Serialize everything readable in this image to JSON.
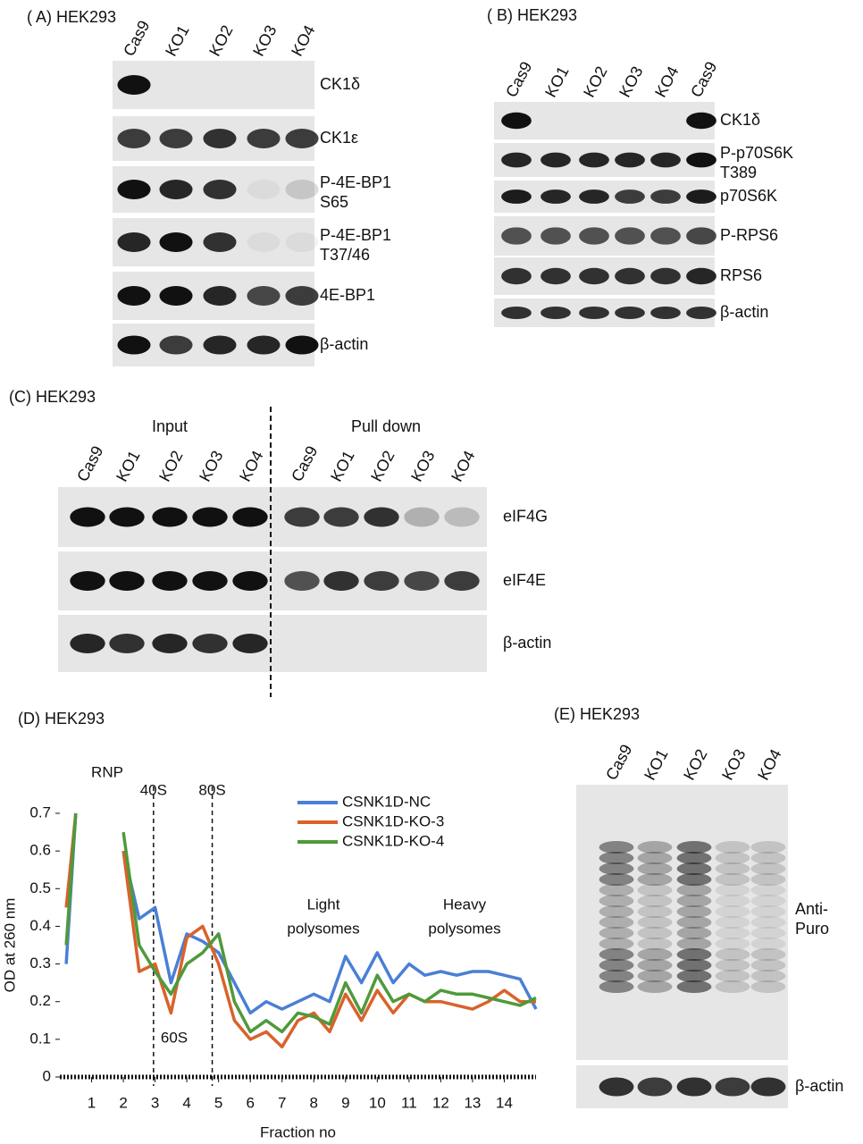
{
  "panels": {
    "A": {
      "label": "( A) HEK293",
      "lanes": [
        "Cas9",
        "KO1",
        "KO2",
        "KO3",
        "KO4"
      ],
      "rows": [
        {
          "lines": [
            "CK1δ"
          ]
        },
        {
          "lines": [
            "CK1ε"
          ]
        },
        {
          "lines": [
            "P-4E-BP1",
            "S65"
          ]
        },
        {
          "lines": [
            "P-4E-BP1",
            "T37/46"
          ]
        },
        {
          "lines": [
            "4E-BP1"
          ]
        },
        {
          "lines": [
            "β-actin"
          ]
        }
      ]
    },
    "B": {
      "label": "( B) HEK293",
      "lanes": [
        "Cas9",
        "KO1",
        "KO2",
        "KO3",
        "KO4",
        "Cas9"
      ],
      "rows": [
        {
          "lines": [
            "CK1δ"
          ]
        },
        {
          "lines": [
            "P-p70S6K",
            "T389"
          ]
        },
        {
          "lines": [
            "p70S6K"
          ]
        },
        {
          "lines": [
            "P-RPS6"
          ]
        },
        {
          "lines": [
            "RPS6"
          ]
        },
        {
          "lines": [
            "β-actin"
          ]
        }
      ]
    },
    "C": {
      "label": "(C) HEK293",
      "headers": [
        "Input",
        "Pull down"
      ],
      "lanes": [
        "Cas9",
        "KO1",
        "KO2",
        "KO3",
        "KO4",
        "Cas9",
        "KO1",
        "KO2",
        "KO3",
        "KO4"
      ],
      "rows": [
        {
          "lines": [
            "eIF4G"
          ]
        },
        {
          "lines": [
            "eIF4E"
          ]
        },
        {
          "lines": [
            "β-actin"
          ]
        }
      ]
    },
    "E": {
      "label": "(E) HEK293",
      "lanes": [
        "Cas9",
        "KO1",
        "KO2",
        "KO3",
        "KO4"
      ],
      "rows": [
        {
          "lines": [
            "Anti-",
            "Puro"
          ]
        },
        {
          "lines": [
            "β-actin"
          ]
        }
      ]
    }
  },
  "chart_data": {
    "type": "line",
    "label": "(D) HEK293",
    "x_label": "Fraction no",
    "y_label": "OD at 260 nm",
    "x": [
      0.2,
      0.5,
      1,
      1.5,
      2,
      2.5,
      3,
      3.5,
      4,
      4.5,
      5,
      5.5,
      6,
      6.5,
      7,
      7.5,
      8,
      8.5,
      9,
      9.5,
      10,
      10.5,
      11,
      11.5,
      12,
      12.5,
      13,
      13.5,
      14,
      14.5,
      15
    ],
    "series": [
      {
        "name": "CSNK1D-NC",
        "color": "#4a7fd6",
        "values": [
          0.3,
          0.7,
          null,
          null,
          0.6,
          0.42,
          0.45,
          0.25,
          0.38,
          0.36,
          0.33,
          0.25,
          0.17,
          0.2,
          0.18,
          0.2,
          0.22,
          0.2,
          0.32,
          0.25,
          0.33,
          0.25,
          0.3,
          0.27,
          0.28,
          0.27,
          0.28,
          0.28,
          0.27,
          0.26,
          0.18
        ]
      },
      {
        "name": "CSNK1D-KO-3",
        "color": "#d9622b",
        "values": [
          0.45,
          0.7,
          null,
          null,
          0.6,
          0.28,
          0.3,
          0.17,
          0.37,
          0.4,
          0.3,
          0.15,
          0.1,
          0.12,
          0.08,
          0.15,
          0.17,
          0.12,
          0.22,
          0.15,
          0.23,
          0.17,
          0.22,
          0.2,
          0.2,
          0.19,
          0.18,
          0.2,
          0.23,
          0.2,
          0.2
        ]
      },
      {
        "name": "CSNK1D-KO-4",
        "color": "#4e9a3a",
        "values": [
          0.35,
          0.7,
          null,
          null,
          0.65,
          0.35,
          0.28,
          0.22,
          0.3,
          0.33,
          0.38,
          0.2,
          0.12,
          0.15,
          0.12,
          0.17,
          0.16,
          0.14,
          0.25,
          0.17,
          0.27,
          0.2,
          0.22,
          0.2,
          0.23,
          0.22,
          0.22,
          0.21,
          0.2,
          0.19,
          0.21
        ]
      }
    ],
    "xlim": [
      0,
      15
    ],
    "ylim": [
      0,
      0.7
    ],
    "xticks": [
      1,
      2,
      3,
      4,
      5,
      6,
      7,
      8,
      9,
      10,
      11,
      12,
      13,
      14
    ],
    "yticks": [
      0,
      0.1,
      0.2,
      0.3,
      0.4,
      0.5,
      0.6,
      0.7
    ],
    "markers": [
      {
        "label": "40S",
        "x": 2.95
      },
      {
        "label": "80S",
        "x": 4.8
      }
    ],
    "annotations": [
      "RNP",
      "60S",
      "Light",
      "polysomes",
      "Heavy",
      "polysomes"
    ]
  }
}
